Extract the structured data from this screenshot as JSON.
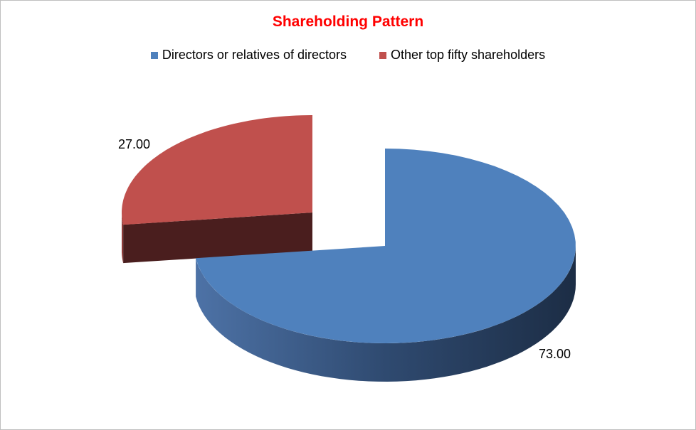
{
  "chart_data": {
    "type": "pie",
    "style": "3d-exploded",
    "title": "Shareholding Pattern",
    "legend_position": "top",
    "series": [
      {
        "name": "Directors or relatives of directors",
        "value": 73.0,
        "label": "73.00",
        "color": "#4f81bd"
      },
      {
        "name": "Other top fifty shareholders",
        "value": 27.0,
        "label": "27.00",
        "color": "#c0504d"
      }
    ]
  }
}
